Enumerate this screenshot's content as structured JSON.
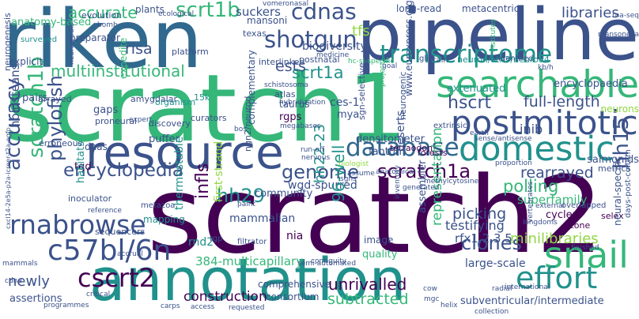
{
  "palette": {
    "dark_purple": "#440154",
    "indigo": "#3b528b",
    "teal_blue": "#31688e",
    "teal": "#21918c",
    "green": "#35b779",
    "lime": "#90d743",
    "yellow": "#fde725"
  },
  "words": [
    {
      "text": "scratch2",
      "color": "#440154"
    },
    {
      "text": "scratch1",
      "color": "#35b779"
    },
    {
      "text": "riken",
      "color": "#31688e"
    },
    {
      "text": "pipeline",
      "color": "#3b528b"
    },
    {
      "text": "annotation",
      "color": "#21918c"
    },
    {
      "text": "resource",
      "color": "#3b528b"
    },
    {
      "text": "searchable",
      "color": "#35b779"
    },
    {
      "text": "postmitotic",
      "color": "#3b528b"
    },
    {
      "text": "domestic",
      "color": "#21918c"
    },
    {
      "text": "transcriptome",
      "color": "#21918c"
    },
    {
      "text": "shotgun",
      "color": "#3b528b"
    },
    {
      "text": "cdnas",
      "color": "#3b528b"
    },
    {
      "text": "scrt1b",
      "color": "#35b779"
    },
    {
      "text": "database",
      "color": "#31688e"
    },
    {
      "text": "snail",
      "color": "#35b779"
    },
    {
      "text": "effort",
      "color": "#21918c"
    },
    {
      "text": "c57bl/6n",
      "color": "#3b528b"
    },
    {
      "text": "cscrt2",
      "color": "#440154"
    },
    {
      "text": "rnabrowse",
      "color": "#3b528b"
    },
    {
      "text": "encyclopedia",
      "color": "#3b528b"
    },
    {
      "text": "genome",
      "color": "#3b528b"
    },
    {
      "text": "scratch1a",
      "color": "#440154"
    },
    {
      "text": "accuracy",
      "color": "#3b528b"
    },
    {
      "text": "scratch1b",
      "color": "#35b779"
    },
    {
      "text": "phylofish",
      "color": "#3b528b"
    },
    {
      "text": "multiinstitutional",
      "color": "#35b779"
    },
    {
      "text": "scrt1a",
      "color": "#21918c"
    },
    {
      "text": "hscrt",
      "color": "#3b528b"
    },
    {
      "text": "full-length",
      "color": "#3b528b"
    },
    {
      "text": "hh15",
      "color": "#3b528b"
    },
    {
      "text": "hh29",
      "color": "#21918c"
    },
    {
      "text": "rearrayed",
      "color": "#3b528b"
    },
    {
      "text": "polling",
      "color": "#35b779"
    },
    {
      "text": "picking",
      "color": "#3b528b"
    },
    {
      "text": "clones",
      "color": "#3b528b"
    },
    {
      "text": "unrivalled",
      "color": "#440154"
    },
    {
      "text": "construction",
      "color": "#440154"
    },
    {
      "text": "minilibraries",
      "color": "#90d743"
    },
    {
      "text": "subtracted",
      "color": "#35b779"
    },
    {
      "text": "ests",
      "color": "#3b528b"
    },
    {
      "text": "tfs",
      "color": "#90d743"
    },
    {
      "text": "libraries",
      "color": "#3b528b"
    },
    {
      "text": "suckers",
      "color": "#3b528b"
    },
    {
      "text": "biodiversity",
      "color": "#3b528b"
    },
    {
      "text": "risa",
      "color": "#3b528b"
    },
    {
      "text": "extenuated",
      "color": "#21918c"
    },
    {
      "text": "encyclopaedia",
      "color": "#3b528b"
    },
    {
      "text": "inib",
      "color": "#3b528b"
    },
    {
      "text": "neurons",
      "color": "#90d743"
    },
    {
      "text": "long-read",
      "color": "#3b528b"
    },
    {
      "text": "metacentric",
      "color": "#3b528b"
    },
    {
      "text": "ces-1",
      "color": "#3b528b"
    },
    {
      "text": "mya",
      "color": "#3b528b"
    },
    {
      "text": "wgd-spurred",
      "color": "#3b528b"
    },
    {
      "text": "infls",
      "color": "#440154"
    },
    {
      "text": "hh22-23",
      "color": "#21918c"
    },
    {
      "text": "nia",
      "color": "#440154"
    },
    {
      "text": "96-well",
      "color": "#21918c"
    },
    {
      "text": "testifying",
      "color": "#3b528b"
    },
    {
      "text": "rfx1,2,3,5",
      "color": "#3b528b"
    },
    {
      "text": "superfamily",
      "color": "#35b779"
    },
    {
      "text": "large-scale",
      "color": "#3b528b"
    },
    {
      "text": "comprehensive",
      "color": "#3b528b"
    },
    {
      "text": "consortium",
      "color": "#3b528b"
    },
    {
      "text": "representation",
      "color": "#35b779"
    },
    {
      "text": "384-multicapillary",
      "color": "#35b779"
    },
    {
      "text": "newly",
      "color": "#3b528b"
    },
    {
      "text": "mammalian",
      "color": "#3b528b"
    },
    {
      "text": "community",
      "color": "#3b528b"
    },
    {
      "text": "rnd2",
      "color": "#21918c"
    },
    {
      "text": "accurate",
      "color": "#35b779"
    },
    {
      "text": "anatomy-based",
      "color": "#35b779"
    },
    {
      "text": "evolution",
      "color": "#3b528b"
    },
    {
      "text": "plants",
      "color": "#3b528b"
    },
    {
      "text": "mansoni",
      "color": "#3b528b"
    },
    {
      "text": "holosteans",
      "color": "#3b528b"
    },
    {
      "text": "pairs",
      "color": "#3b528b"
    },
    {
      "text": "amygdalar",
      "color": "#3b528b"
    },
    {
      "text": "gaps",
      "color": "#3b528b"
    },
    {
      "text": "puffer",
      "color": "#3b528b"
    },
    {
      "text": "taurus",
      "color": "#3b528b"
    },
    {
      "text": "rgps",
      "color": "#440154"
    },
    {
      "text": "densitometer",
      "color": "#3b528b"
    },
    {
      "text": "tetraodon",
      "color": "#440154"
    },
    {
      "text": "fantom",
      "color": "#3b528b"
    },
    {
      "text": "forests",
      "color": "#440154"
    },
    {
      "text": "www.eurexpress.org",
      "color": "#3b528b"
    },
    {
      "text": "dnas",
      "color": "#3b528b"
    },
    {
      "text": "tgd",
      "color": "#440154"
    },
    {
      "text": "habitats",
      "color": "#21918c"
    },
    {
      "text": "inoculator",
      "color": "#3b528b"
    },
    {
      "text": "thermostable",
      "color": "#21918c"
    },
    {
      "text": "first-strand",
      "color": "#90d743"
    },
    {
      "text": "mapping",
      "color": "#21918c"
    },
    {
      "text": "metazoa",
      "color": "#3b528b"
    },
    {
      "text": "sequencers",
      "color": "#3b528b"
    },
    {
      "text": "cycler",
      "color": "#440154"
    },
    {
      "text": "zone",
      "color": "#440154"
    },
    {
      "text": "selex",
      "color": "#440154"
    },
    {
      "text": "salmonids",
      "color": "#3b528b"
    },
    {
      "text": "metrics",
      "color": "#3b528b"
    },
    {
      "text": "assembler",
      "color": "#3b528b"
    },
    {
      "text": "image",
      "color": "#3b528b"
    },
    {
      "text": "quality",
      "color": "#35b779"
    },
    {
      "text": "deserts",
      "color": "#3b528b"
    },
    {
      "text": "platform",
      "color": "#3b528b"
    },
    {
      "text": "preparator",
      "color": "#3b528b"
    },
    {
      "text": "texas",
      "color": "#3b528b"
    },
    {
      "text": "interlinked",
      "color": "#3b528b"
    },
    {
      "text": "atlas",
      "color": "#3b528b"
    },
    {
      "text": "15k",
      "color": "#21918c"
    },
    {
      "text": "curators",
      "color": "#3b528b"
    },
    {
      "text": "organism",
      "color": "#21918c"
    },
    {
      "text": "discovery",
      "color": "#3b528b"
    },
    {
      "text": "rgp",
      "color": "#3b528b"
    },
    {
      "text": "filtrator",
      "color": "#3b528b"
    },
    {
      "text": "proneural",
      "color": "#3b528b"
    },
    {
      "text": "erroneous",
      "color": "#3b528b"
    },
    {
      "text": "explicit",
      "color": "#3b528b"
    },
    {
      "text": "arrayed",
      "color": "#3b528b"
    },
    {
      "text": "neurogenesis",
      "color": "#3b528b"
    },
    {
      "text": "surveyed",
      "color": "#21918c"
    },
    {
      "text": "expedite",
      "color": "#35b779"
    },
    {
      "text": "vomeronasal",
      "color": "#3b528b"
    },
    {
      "text": "ecological",
      "color": "#3b528b"
    },
    {
      "text": "bomb",
      "color": "#3b528b"
    },
    {
      "text": "postnatal",
      "color": "#3b528b"
    },
    {
      "text": "schistosoma",
      "color": "#3b528b"
    },
    {
      "text": "hybridization",
      "color": "#3b528b"
    },
    {
      "text": "megabases",
      "color": "#3b528b"
    },
    {
      "text": "complementary",
      "color": "#3b528b"
    },
    {
      "text": "ngn2/neurod",
      "color": "#3b528b"
    },
    {
      "text": "sgn-selective",
      "color": "#3b528b"
    },
    {
      "text": "neurogenic",
      "color": "#3b528b"
    },
    {
      "text": "extrinsic",
      "color": "#3b528b"
    },
    {
      "text": "neuron/ath3/neurod4",
      "color": "#21918c"
    },
    {
      "text": "kb/h",
      "color": "#3b528b"
    },
    {
      "text": "identifed",
      "color": "#3b528b"
    },
    {
      "text": "glia",
      "color": "#3b528b"
    },
    {
      "text": "brain",
      "color": "#3b528b"
    },
    {
      "text": "earth",
      "color": "#3b528b"
    },
    {
      "text": "sense/antisense",
      "color": "#3b528b"
    },
    {
      "text": "run-off",
      "color": "#3b528b"
    },
    {
      "text": "nervous",
      "color": "#3b528b"
    },
    {
      "text": "biologist",
      "color": "#90d743"
    },
    {
      "text": "assume",
      "color": "#3b528b"
    },
    {
      "text": "anatomical",
      "color": "#3b528b"
    },
    {
      "text": "sgns",
      "color": "#3b528b"
    },
    {
      "text": "methylcytosine",
      "color": "#3b528b"
    },
    {
      "text": "proportion",
      "color": "#3b528b"
    },
    {
      "text": "generated",
      "color": "#3b528b"
    },
    {
      "text": "inventory",
      "color": "#3b528b"
    },
    {
      "text": "external",
      "color": "#3b528b"
    },
    {
      "text": "kingdoms",
      "color": "#3b528b"
    },
    {
      "text": "vertebrates",
      "color": "#3b528b"
    },
    {
      "text": "overlapped",
      "color": "#3b528b"
    },
    {
      "text": "finished",
      "color": "#3b528b"
    },
    {
      "text": "neural-specific",
      "color": "#3b528b"
    },
    {
      "text": "days-post-coitum",
      "color": "#3b528b"
    },
    {
      "text": "international",
      "color": "#3b528b"
    },
    {
      "text": "radial",
      "color": "#3b528b"
    },
    {
      "text": "subventricular/intermediate",
      "color": "#3b528b"
    },
    {
      "text": "collection",
      "color": "#3b528b"
    },
    {
      "text": "helix",
      "color": "#3b528b"
    },
    {
      "text": "cow",
      "color": "#3b528b"
    },
    {
      "text": "mgc",
      "color": "#3b528b"
    },
    {
      "text": "requested",
      "color": "#3b528b"
    },
    {
      "text": "carps",
      "color": "#3b528b"
    },
    {
      "text": "access",
      "color": "#3b528b"
    },
    {
      "text": "semi-automated",
      "color": "#3b528b"
    },
    {
      "text": "contiguity",
      "color": "#3b528b"
    },
    {
      "text": "programmes",
      "color": "#3b528b"
    },
    {
      "text": "assertions",
      "color": "#3b528b"
    },
    {
      "text": "cdna",
      "color": "#3b528b"
    },
    {
      "text": "mammals",
      "color": "#3b528b"
    },
    {
      "text": "reference",
      "color": "#3b528b"
    },
    {
      "text": "accrual",
      "color": "#3b528b"
    },
    {
      "text": "paint",
      "color": "#3b528b"
    },
    {
      "text": "critical",
      "color": "#3b528b"
    },
    {
      "text": "cxcl14-2e5a-p2a-icreer-t2a-egfp",
      "color": "#3b528b"
    },
    {
      "text": "neuroviridis",
      "color": "#3b528b"
    },
    {
      "text": "expert",
      "color": "#3b528b"
    },
    {
      "text": "goal",
      "color": "#3b528b"
    },
    {
      "text": "project",
      "color": "#35b779"
    },
    {
      "text": "hc-sl-specific",
      "color": "#35b779"
    },
    {
      "text": "institutes",
      "color": "#35b779"
    },
    {
      "text": "rna-seq",
      "color": "#3b528b"
    },
    {
      "text": "mansonella",
      "color": "#3b528b"
    },
    {
      "text": "medicine",
      "color": "#3b528b"
    },
    {
      "text": "bos",
      "color": "#3b528b"
    }
  ]
}
